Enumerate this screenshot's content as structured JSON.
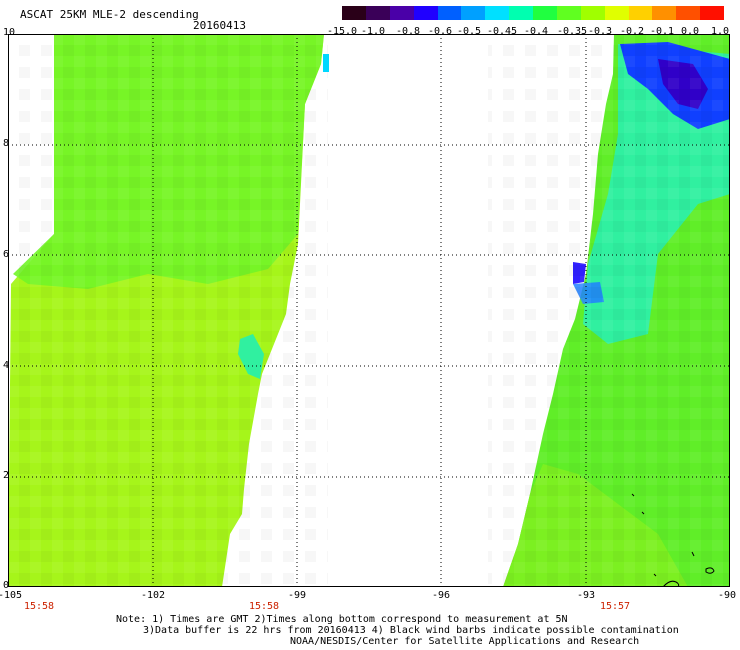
{
  "header": {
    "title": "ASCAT 25KM MLE-2 descending",
    "date": "20160413"
  },
  "colorbar": {
    "colors": [
      "#2a0018",
      "#3a0058",
      "#4a00a8",
      "#2000ff",
      "#0060ff",
      "#00a0ff",
      "#00e0ff",
      "#00ffb0",
      "#20ff40",
      "#60ff20",
      "#a0ff00",
      "#e0ff00",
      "#ffd000",
      "#ff9000",
      "#ff5000",
      "#ff1000"
    ],
    "labels": [
      "-15.0",
      "-1.0",
      "-0.8",
      "-0.6",
      "-0.5",
      "-0.45",
      "-0.4",
      "-0.35",
      "-0.3",
      "-0.2",
      "-0.1",
      "0.0",
      "1.0"
    ]
  },
  "axes": {
    "y_ticks": [
      "0",
      "2",
      "4",
      "6",
      "8",
      "10"
    ],
    "x_ticks": [
      "-105",
      "-102",
      "-99",
      "-96",
      "-93",
      "-90"
    ],
    "time_labels": [
      "15:58",
      "15:58",
      "15:57"
    ]
  },
  "swaths": {
    "left": {
      "level": "-0.2"
    },
    "right": {
      "level": "-0.3"
    }
  },
  "notes": {
    "line1": "Note: 1) Times are GMT 2)Times along bottom correspond to measurement at 5N",
    "line2": "3)Data buffer is 22 hrs from 20160413 4) Black wind barbs indicate possible contamination",
    "line3": "NOAA/NESDIS/Center for Satellite Applications and Research"
  }
}
